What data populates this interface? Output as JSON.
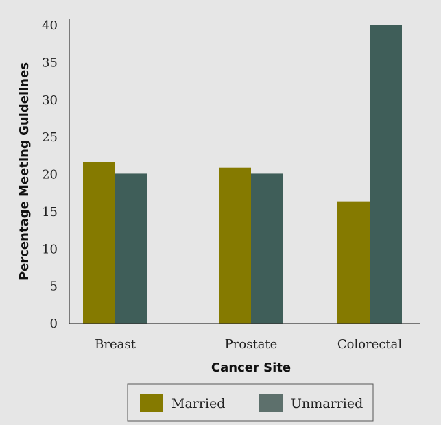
{
  "chart_data": {
    "type": "bar",
    "categories": [
      "Breast",
      "Prostate",
      "Colorectal"
    ],
    "series": [
      {
        "name": "Married",
        "values": [
          21.7,
          20.9,
          16.4
        ]
      },
      {
        "name": "Unmarried",
        "values": [
          20.1,
          20.1,
          40.0
        ]
      }
    ],
    "xlabel": "Cancer Site",
    "ylabel": "Percentage Meeting Guidelines",
    "ylim": [
      0,
      40
    ],
    "yticks": [
      "0",
      "5",
      "10",
      "15",
      "20",
      "25",
      "30",
      "35",
      "40"
    ],
    "grid": false,
    "legend_placement": "bottom-center",
    "colors": {
      "Married": "#857a00",
      "Unmarried": "#3f5e59",
      "Unmarried_legend": "#5d706c",
      "background": "#e6e6e6",
      "axis": "#333333"
    }
  }
}
